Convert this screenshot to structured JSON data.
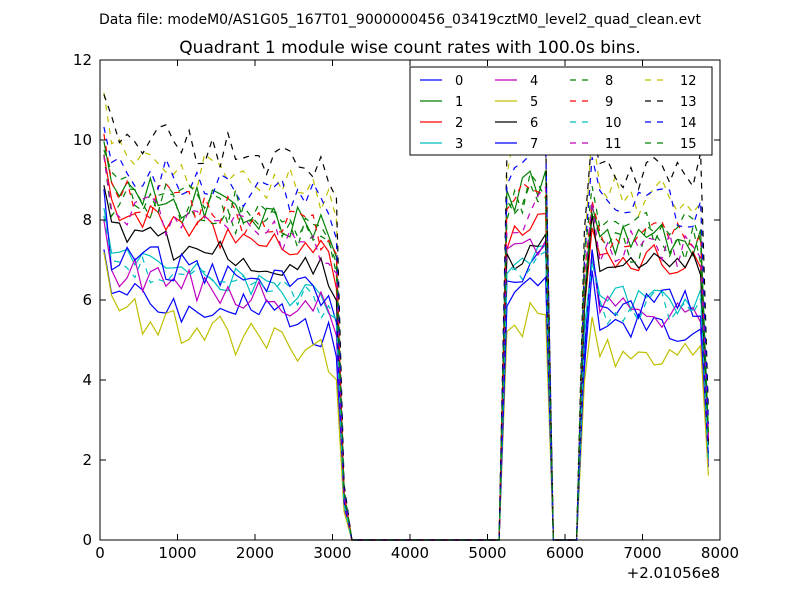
{
  "header": {
    "datafile": "Data file: modeM0/AS1G05_167T01_9000000456_03419cztM0_level2_quad_clean.evt",
    "title": "Quadrant 1 module wise count rates with 100.0s bins."
  },
  "chart_data": {
    "type": "line",
    "xlim": [
      0,
      8000
    ],
    "ylim": [
      0,
      12
    ],
    "x_offset_label": "+2.01056e8",
    "x_ticks": [
      0,
      1000,
      2000,
      3000,
      4000,
      5000,
      6000,
      7000,
      8000
    ],
    "y_ticks": [
      0,
      2,
      4,
      6,
      8,
      10,
      12
    ],
    "grid": false,
    "legend_position": "top-right",
    "legend_columns": 4,
    "series": [
      {
        "name": "0",
        "color": "#0000ff",
        "dash": "solid",
        "base": 5.3,
        "p": 6.3,
        "q": 5.2,
        "amp": 0.5
      },
      {
        "name": "1",
        "color": "#008000",
        "dash": "solid",
        "base": 7.8,
        "p": 8.6,
        "q": 7.5,
        "amp": 0.5
      },
      {
        "name": "2",
        "color": "#ff0000",
        "dash": "solid",
        "base": 7.2,
        "p": 7.6,
        "q": 7.0,
        "amp": 0.4
      },
      {
        "name": "3",
        "color": "#00bfbf",
        "dash": "solid",
        "base": 6.0,
        "p": 6.8,
        "q": 6.0,
        "amp": 0.4
      },
      {
        "name": "4",
        "color": "#bf00bf",
        "dash": "solid",
        "base": 5.8,
        "p": 6.9,
        "q": 5.7,
        "amp": 0.4
      },
      {
        "name": "5",
        "color": "#bfbf00",
        "dash": "solid",
        "base": 4.7,
        "p": 5.1,
        "q": 4.6,
        "amp": 0.5
      },
      {
        "name": "6",
        "color": "#000000",
        "dash": "solid",
        "base": 6.7,
        "p": 7.0,
        "q": 6.8,
        "amp": 0.4
      },
      {
        "name": "7",
        "color": "#0000ff",
        "dash": "solid",
        "base": 6.2,
        "p": 6.2,
        "q": 5.9,
        "amp": 0.4
      },
      {
        "name": "8",
        "color": "#008000",
        "dash": "dashed",
        "base": 7.6,
        "p": 8.2,
        "q": 7.4,
        "amp": 0.5
      },
      {
        "name": "9",
        "color": "#ff0000",
        "dash": "dashed",
        "base": 7.7,
        "p": 8.4,
        "q": 7.6,
        "amp": 0.5
      },
      {
        "name": "10",
        "color": "#00bfbf",
        "dash": "dashed",
        "base": 5.9,
        "p": 6.3,
        "q": 5.8,
        "amp": 0.4
      },
      {
        "name": "11",
        "color": "#bf00bf",
        "dash": "dashed",
        "base": 7.4,
        "p": 7.8,
        "q": 7.3,
        "amp": 0.5
      },
      {
        "name": "12",
        "color": "#bfbf00",
        "dash": "dashed",
        "base": 8.7,
        "p": 9.6,
        "q": 8.6,
        "amp": 0.5
      },
      {
        "name": "13",
        "color": "#000000",
        "dash": "dashed",
        "base": 9.3,
        "p": 10.0,
        "q": 9.2,
        "amp": 0.5
      },
      {
        "name": "14",
        "color": "#0000ff",
        "dash": "dashed",
        "base": 8.4,
        "p": 9.2,
        "q": 8.3,
        "amp": 0.5
      },
      {
        "name": "15",
        "color": "#008000",
        "dash": "dashed",
        "base": 7.9,
        "p": 8.4,
        "q": 7.7,
        "amp": 0.5
      }
    ]
  }
}
